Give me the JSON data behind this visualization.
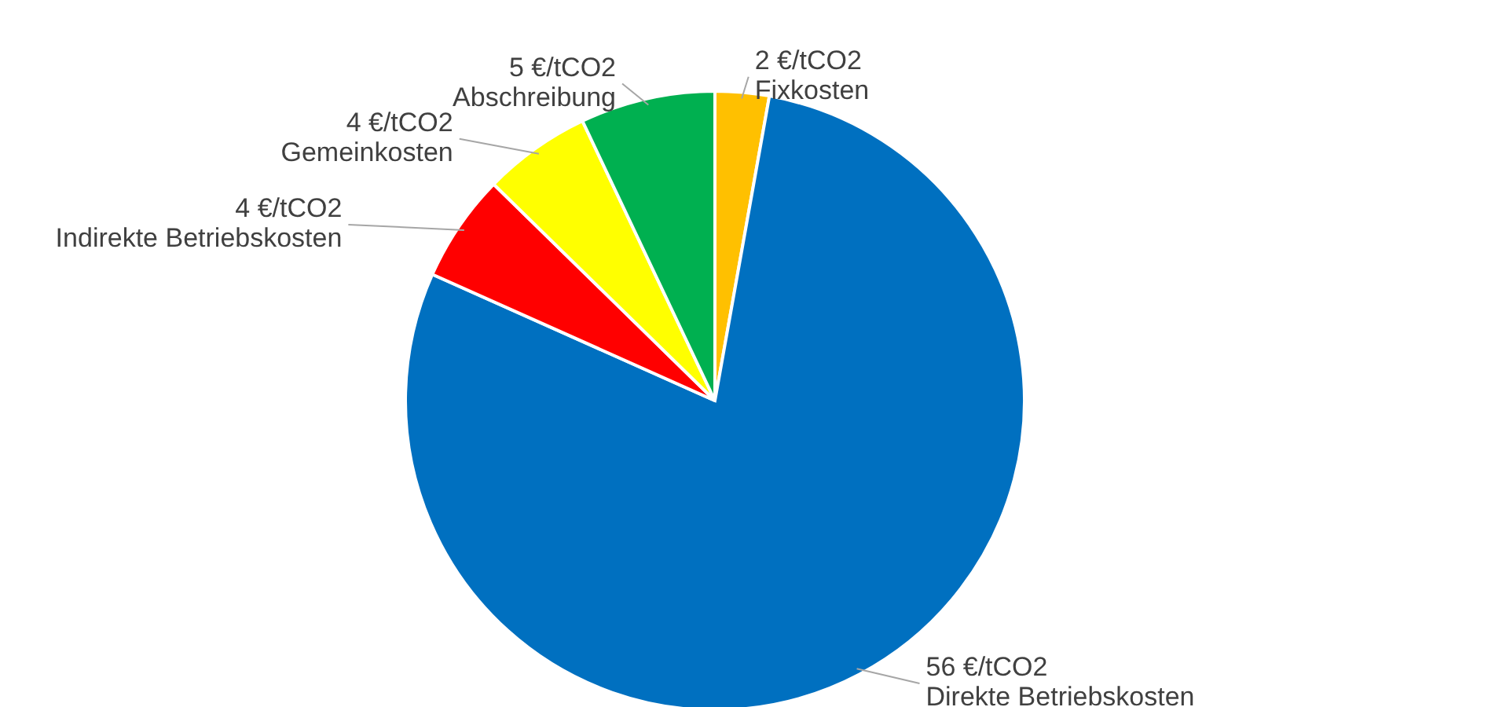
{
  "chart_data": {
    "type": "pie",
    "categories": [
      "Fixkosten",
      "Direkte Betriebskosten",
      "Indirekte Betriebskosten",
      "Gemeinkosten",
      "Abschreibung"
    ],
    "values": [
      2,
      56,
      4,
      4,
      5
    ],
    "value_labels": [
      "2 €/tCO2",
      "56 €/tCO2",
      "4 €/tCO2",
      "4 €/tCO2",
      "5 €/tCO2"
    ],
    "colors": [
      "#ffc000",
      "#0070c0",
      "#ff0000",
      "#ffff00",
      "#00b050"
    ]
  }
}
